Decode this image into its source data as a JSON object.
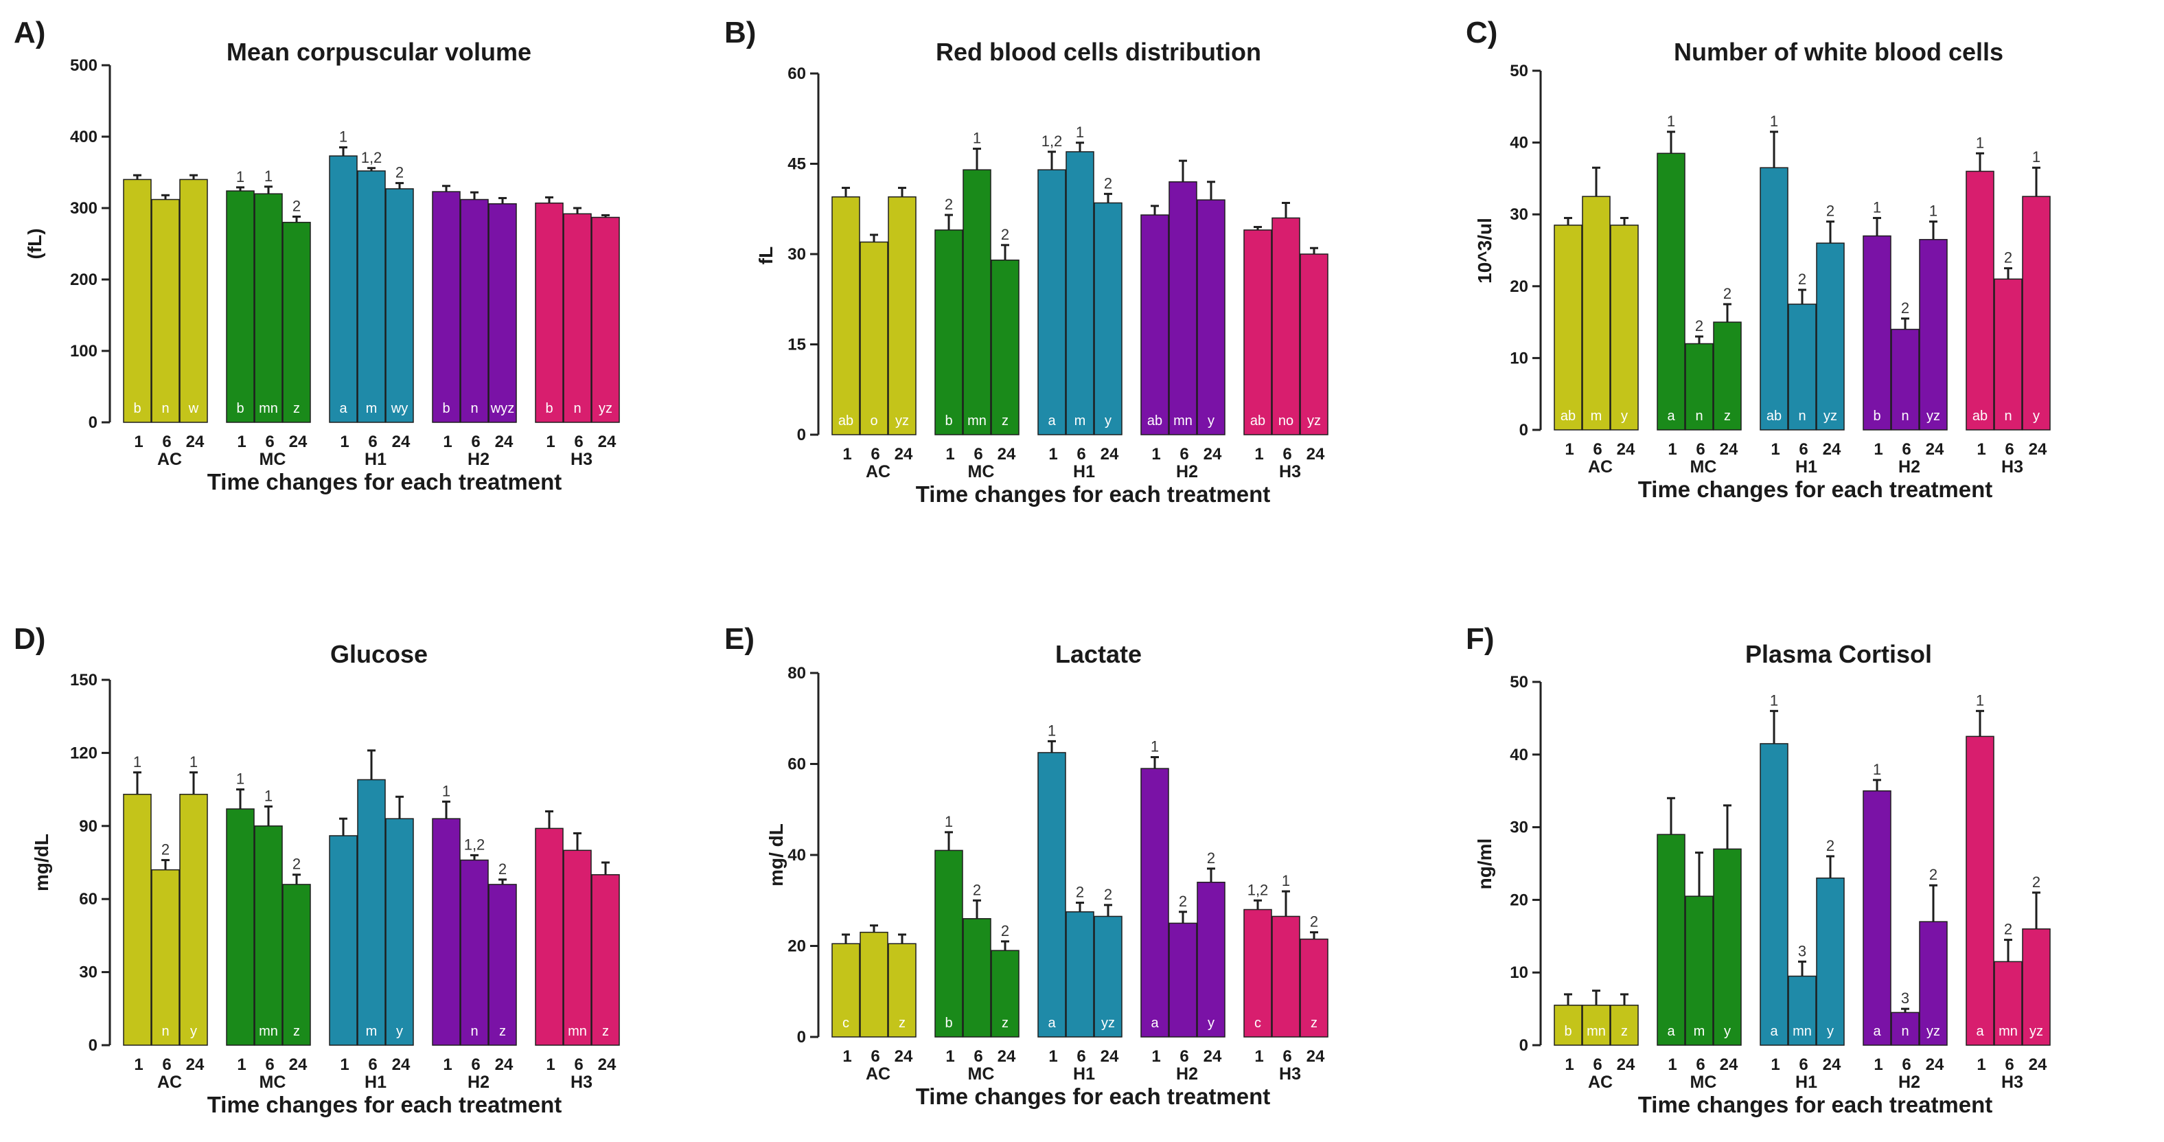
{
  "figure": {
    "xlabel_common": "Time changes for each treatment",
    "groups": [
      "AC",
      "MC",
      "H1",
      "H2",
      "H3"
    ],
    "hours": [
      "1",
      "6",
      "24"
    ],
    "colors": {
      "AC": "#c4c41a",
      "MC": "#1a8a1a",
      "H1": "#1f8aa8",
      "H2": "#7a12a6",
      "H3": "#d81e6e"
    }
  },
  "chart_data": [
    {
      "letter": "A)",
      "type": "bar",
      "title": "Mean corpuscular volume",
      "ylabel": "(fL)",
      "ylim": [
        0,
        500
      ],
      "yticks": [
        "0",
        "100",
        "200",
        "300",
        "400",
        "500"
      ],
      "values": [
        [
          340,
          312,
          340
        ],
        [
          324,
          320,
          280
        ],
        [
          373,
          352,
          327
        ],
        [
          323,
          312,
          306
        ],
        [
          307,
          292,
          287
        ]
      ],
      "errors": [
        [
          6,
          6,
          6
        ],
        [
          5,
          10,
          8
        ],
        [
          12,
          4,
          8
        ],
        [
          8,
          10,
          8
        ],
        [
          8,
          8,
          3
        ]
      ],
      "annotations": [
        [
          "",
          "",
          ""
        ],
        [
          "1",
          "1",
          "2"
        ],
        [
          "1",
          "1,2",
          "2"
        ],
        [
          "",
          "",
          ""
        ],
        [
          "",
          "",
          ""
        ]
      ],
      "letters": [
        [
          "b",
          "n",
          "w"
        ],
        [
          "b",
          "mn",
          "z"
        ],
        [
          "a",
          "m",
          "wy"
        ],
        [
          "b",
          "n",
          "wyz"
        ],
        [
          "b",
          "n",
          "yz"
        ]
      ]
    },
    {
      "letter": "B)",
      "type": "bar",
      "title": "Red blood cells distribution",
      "ylabel": "fL",
      "ylim": [
        0,
        60
      ],
      "yticks": [
        "0",
        "15",
        "30",
        "45",
        "60"
      ],
      "values": [
        [
          39.5,
          32,
          39.5
        ],
        [
          34,
          44,
          29
        ],
        [
          44,
          47,
          38.5
        ],
        [
          36.5,
          42,
          39
        ],
        [
          34,
          36,
          30
        ]
      ],
      "errors": [
        [
          1.5,
          1.2,
          1.5
        ],
        [
          2.5,
          3.5,
          2.5
        ],
        [
          3,
          1.5,
          1.5
        ],
        [
          1.5,
          3.5,
          3
        ],
        [
          0.5,
          2.5,
          1
        ]
      ],
      "annotations": [
        [
          "",
          "",
          ""
        ],
        [
          "2",
          "1",
          "2"
        ],
        [
          "1,2",
          "1",
          "2"
        ],
        [
          "",
          "",
          ""
        ],
        [
          "",
          "",
          ""
        ]
      ],
      "letters": [
        [
          "ab",
          "o",
          "yz"
        ],
        [
          "b",
          "mn",
          "z"
        ],
        [
          "a",
          "m",
          "y"
        ],
        [
          "ab",
          "mn",
          "y"
        ],
        [
          "ab",
          "no",
          "yz"
        ]
      ]
    },
    {
      "letter": "C)",
      "type": "bar",
      "title": "Number of white blood cells",
      "ylabel": "10^3/ul",
      "ylim": [
        0,
        50
      ],
      "yticks": [
        "0",
        "10",
        "20",
        "30",
        "40",
        "50"
      ],
      "values": [
        [
          28.5,
          32.5,
          28.5
        ],
        [
          38.5,
          12,
          15
        ],
        [
          36.5,
          17.5,
          26
        ],
        [
          27,
          14,
          26.5
        ],
        [
          36,
          21,
          32.5
        ]
      ],
      "errors": [
        [
          1,
          4,
          1
        ],
        [
          3,
          1,
          2.5
        ],
        [
          5,
          2,
          3
        ],
        [
          2.5,
          1.5,
          2.5
        ],
        [
          2.5,
          1.5,
          4
        ]
      ],
      "annotations": [
        [
          "",
          "",
          ""
        ],
        [
          "1",
          "2",
          "2"
        ],
        [
          "1",
          "2",
          "2"
        ],
        [
          "1",
          "2",
          "1"
        ],
        [
          "1",
          "2",
          "1"
        ]
      ],
      "letters": [
        [
          "ab",
          "m",
          "y"
        ],
        [
          "a",
          "n",
          "z"
        ],
        [
          "ab",
          "n",
          "yz"
        ],
        [
          "b",
          "n",
          "yz"
        ],
        [
          "ab",
          "n",
          "y"
        ]
      ]
    },
    {
      "letter": "D)",
      "type": "bar",
      "title": "Glucose",
      "ylabel": "mg/dL",
      "ylim": [
        0,
        150
      ],
      "yticks": [
        "0",
        "30",
        "60",
        "90",
        "120",
        "150"
      ],
      "values": [
        [
          103,
          72,
          103
        ],
        [
          97,
          90,
          66
        ],
        [
          86,
          109,
          93
        ],
        [
          93,
          76,
          66
        ],
        [
          89,
          80,
          70
        ]
      ],
      "errors": [
        [
          9,
          4,
          9
        ],
        [
          8,
          8,
          4
        ],
        [
          7,
          12,
          9
        ],
        [
          7,
          2,
          2
        ],
        [
          7,
          7,
          5
        ]
      ],
      "annotations": [
        [
          "1",
          "2",
          "1"
        ],
        [
          "1",
          "1",
          "2"
        ],
        [
          "",
          "",
          ""
        ],
        [
          "1",
          "1,2",
          "2"
        ],
        [
          "",
          "",
          ""
        ]
      ],
      "letters": [
        [
          "",
          "n",
          "y"
        ],
        [
          "",
          "mn",
          "z"
        ],
        [
          "",
          "m",
          "y"
        ],
        [
          "",
          "n",
          "z"
        ],
        [
          "",
          "mn",
          "z"
        ]
      ]
    },
    {
      "letter": "E)",
      "type": "bar",
      "title": "Lactate",
      "ylabel": "mg/ dL",
      "ylim": [
        0,
        80
      ],
      "yticks": [
        "0",
        "20",
        "40",
        "60",
        "80"
      ],
      "values": [
        [
          20.5,
          23,
          20.5
        ],
        [
          41,
          26,
          19
        ],
        [
          62.5,
          27.5,
          26.5
        ],
        [
          59,
          25,
          34
        ],
        [
          28,
          26.5,
          21.5
        ]
      ],
      "errors": [
        [
          2,
          1.5,
          2
        ],
        [
          4,
          4,
          2
        ],
        [
          2.5,
          2,
          2.5
        ],
        [
          2.5,
          2.5,
          3
        ],
        [
          2,
          5.5,
          1.5
        ]
      ],
      "annotations": [
        [
          "",
          "",
          ""
        ],
        [
          "1",
          "2",
          "2"
        ],
        [
          "1",
          "2",
          "2"
        ],
        [
          "1",
          "2",
          "2"
        ],
        [
          "1,2",
          "1",
          "2"
        ]
      ],
      "letters": [
        [
          "c",
          "",
          "z"
        ],
        [
          "b",
          "",
          "z"
        ],
        [
          "a",
          "",
          "yz"
        ],
        [
          "a",
          "",
          "y"
        ],
        [
          "c",
          "",
          "z"
        ]
      ]
    },
    {
      "letter": "F)",
      "type": "bar",
      "title": "Plasma Cortisol",
      "ylabel": "ng/ml",
      "ylim": [
        0,
        50
      ],
      "yticks": [
        "0",
        "10",
        "20",
        "30",
        "40",
        "50"
      ],
      "values": [
        [
          5.5,
          5.5,
          5.5
        ],
        [
          29,
          20.5,
          27
        ],
        [
          41.5,
          9.5,
          23
        ],
        [
          35,
          4.5,
          17
        ],
        [
          42.5,
          11.5,
          16
        ]
      ],
      "errors": [
        [
          1.5,
          2,
          1.5
        ],
        [
          5,
          6,
          6
        ],
        [
          4.5,
          2,
          3
        ],
        [
          1.5,
          0.5,
          5
        ],
        [
          3.5,
          3,
          5
        ]
      ],
      "annotations": [
        [
          "",
          "",
          ""
        ],
        [
          "",
          "",
          ""
        ],
        [
          "1",
          "3",
          "2"
        ],
        [
          "1",
          "3",
          "2"
        ],
        [
          "1",
          "2",
          "2"
        ]
      ],
      "letters": [
        [
          "b",
          "mn",
          "z"
        ],
        [
          "a",
          "m",
          "y"
        ],
        [
          "a",
          "mn",
          "y"
        ],
        [
          "a",
          "n",
          "yz"
        ],
        [
          "a",
          "mn",
          "yz"
        ]
      ]
    }
  ]
}
